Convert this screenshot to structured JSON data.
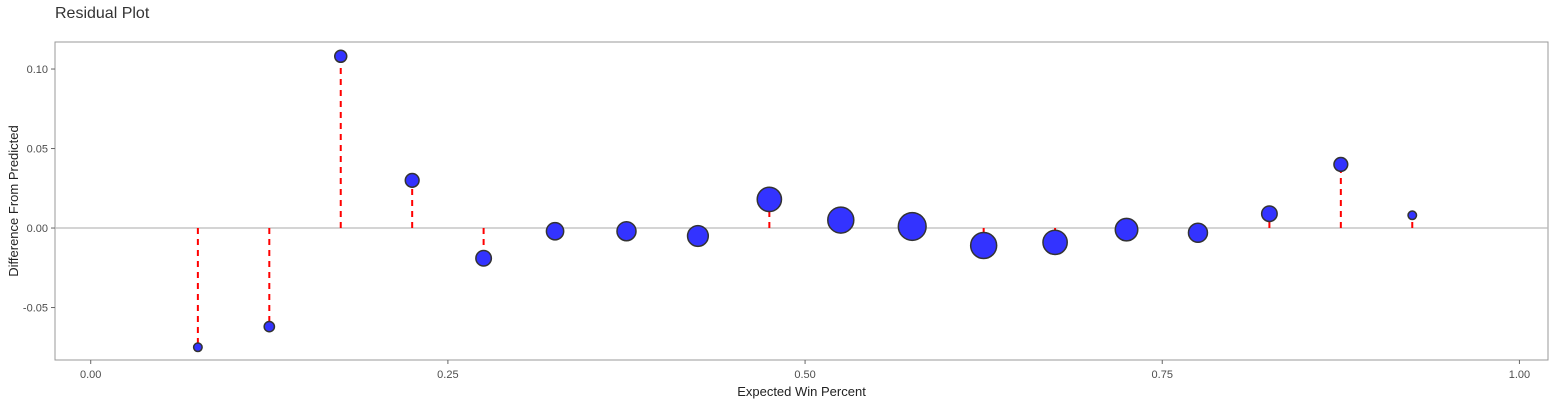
{
  "chart_data": {
    "type": "scatter",
    "title": "Residual Plot",
    "xlabel": "Expected Win Percent",
    "ylabel": "Difference From Predicted",
    "xlim": [
      -0.025,
      1.02
    ],
    "ylim": [
      -0.083,
      0.117
    ],
    "x_ticks": [
      "0.00",
      "0.25",
      "0.50",
      "0.75",
      "1.00"
    ],
    "y_ticks": [
      "-0.05",
      "0.00",
      "0.05",
      "0.10"
    ],
    "x_tick_values": [
      0,
      0.25,
      0.5,
      0.75,
      1.0
    ],
    "y_tick_values": [
      -0.05,
      0,
      0.05,
      0.1
    ],
    "grid": false,
    "reference_line_y": 0,
    "colors": {
      "point_fill": "#3333ff",
      "point_stroke": "#333333",
      "residual_line": "#ff0000",
      "zero_line": "#bbbbbb",
      "panel_border": "#999999"
    },
    "points": [
      {
        "x": 0.075,
        "y": -0.075,
        "size": 1
      },
      {
        "x": 0.125,
        "y": -0.062,
        "size": 1.5
      },
      {
        "x": 0.175,
        "y": 0.108,
        "size": 2
      },
      {
        "x": 0.225,
        "y": 0.03,
        "size": 2.5
      },
      {
        "x": 0.275,
        "y": -0.019,
        "size": 3
      },
      {
        "x": 0.325,
        "y": -0.002,
        "size": 3.5
      },
      {
        "x": 0.375,
        "y": -0.002,
        "size": 4
      },
      {
        "x": 0.425,
        "y": -0.005,
        "size": 4.5
      },
      {
        "x": 0.475,
        "y": 0.018,
        "size": 5.5
      },
      {
        "x": 0.525,
        "y": 0.005,
        "size": 6
      },
      {
        "x": 0.575,
        "y": 0.001,
        "size": 6.5
      },
      {
        "x": 0.625,
        "y": -0.011,
        "size": 6
      },
      {
        "x": 0.675,
        "y": -0.009,
        "size": 5.5
      },
      {
        "x": 0.725,
        "y": -0.001,
        "size": 5
      },
      {
        "x": 0.775,
        "y": -0.003,
        "size": 4
      },
      {
        "x": 0.825,
        "y": 0.009,
        "size": 3
      },
      {
        "x": 0.875,
        "y": 0.04,
        "size": 2.5
      },
      {
        "x": 0.925,
        "y": 0.008,
        "size": 1
      }
    ]
  }
}
